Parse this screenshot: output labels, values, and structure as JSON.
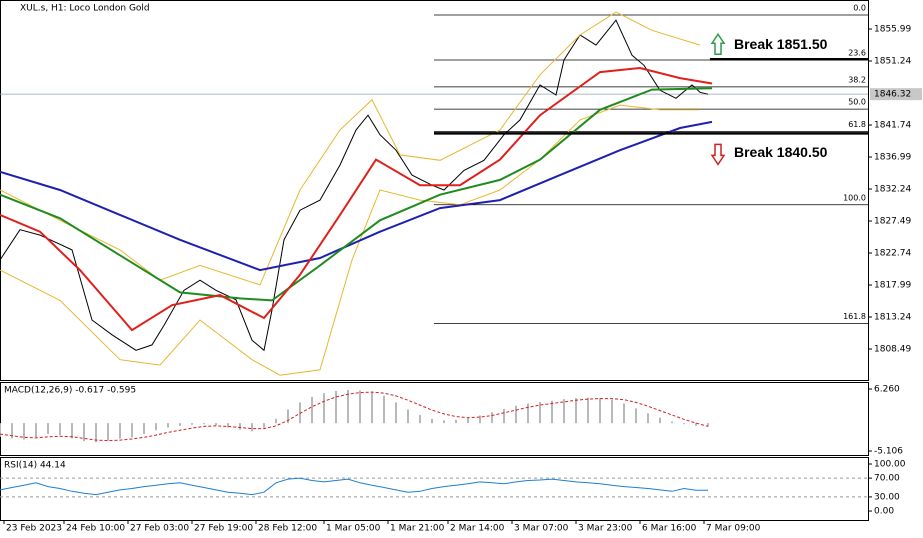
{
  "chart_data": [
    {
      "type": "line",
      "title": "XUL.s, H1:  Loco London Gold",
      "xlim": [
        0,
        217
      ],
      "ylim": [
        1803.89,
        1859.11
      ],
      "yticks": [
        1855.99,
        1851.24,
        1841.74,
        1836.99,
        1832.24,
        1827.49,
        1822.74,
        1817.99,
        1813.24,
        1808.49
      ],
      "xticks": [
        {
          "value": 1,
          "label": "23 Feb 2023"
        },
        {
          "value": 16,
          "label": "24 Feb 10:00"
        },
        {
          "value": 32,
          "label": "27 Feb 03:00"
        },
        {
          "value": 48,
          "label": "27 Feb 19:00"
        },
        {
          "value": 64,
          "label": "28 Feb 12:00"
        },
        {
          "value": 81,
          "label": "1 Mar 05:00"
        },
        {
          "value": 97,
          "label": "1 Mar 21:00"
        },
        {
          "value": 112,
          "label": "2 Mar 14:00"
        },
        {
          "value": 128,
          "label": "3 Mar 07:00"
        },
        {
          "value": 144,
          "label": "3 Mar 23:00"
        },
        {
          "value": 160,
          "label": "6 Mar 16:00"
        },
        {
          "value": 176,
          "label": "7 Mar 09:00"
        }
      ],
      "current_price": 1846.32,
      "series": [
        {
          "color": "#000000",
          "x": [
            0,
            5,
            10,
            18,
            23,
            28,
            34,
            38,
            41,
            46,
            50,
            54,
            59,
            63,
            66,
            68,
            71,
            75,
            80,
            85,
            89,
            92,
            95,
            99,
            103,
            108,
            111,
            116,
            121,
            126,
            130,
            135,
            139,
            141,
            145,
            149,
            154,
            158,
            161,
            165,
            169,
            173,
            175,
            177
          ],
          "values": [
            1821.7,
            1826.2,
            1825.4,
            1823.2,
            1812.8,
            1810.6,
            1808.3,
            1809.1,
            1812.0,
            1817.2,
            1818.7,
            1817.2,
            1815.8,
            1809.8,
            1808.3,
            1814.3,
            1824.7,
            1829.1,
            1830.6,
            1835.8,
            1841.0,
            1843.2,
            1840.3,
            1838.0,
            1834.3,
            1832.8,
            1832.1,
            1835.0,
            1836.5,
            1840.3,
            1842.5,
            1847.7,
            1846.2,
            1851.4,
            1855.1,
            1853.6,
            1857.3,
            1852.1,
            1850.6,
            1846.9,
            1845.7,
            1847.7,
            1846.6,
            1846.32
          ]
        },
        {
          "color": "#e8b630",
          "x": [
            0,
            15,
            30,
            40,
            50,
            65,
            75,
            85,
            93,
            100,
            110,
            125,
            135,
            145,
            154,
            163,
            175
          ],
          "values": [
            1832.1,
            1827.6,
            1823.2,
            1818.7,
            1820.9,
            1818.0,
            1832.1,
            1841.0,
            1845.5,
            1837.3,
            1836.5,
            1841.0,
            1849.2,
            1855.1,
            1858.5,
            1855.8,
            1853.6
          ]
        },
        {
          "color": "#e8b630",
          "x": [
            0,
            15,
            30,
            40,
            50,
            63,
            70,
            80,
            88,
            95,
            105,
            115,
            125,
            135,
            145,
            155,
            165,
            175
          ],
          "values": [
            1820.2,
            1815.7,
            1806.9,
            1806.1,
            1812.8,
            1806.9,
            1804.6,
            1805.4,
            1821.7,
            1832.1,
            1830.6,
            1829.9,
            1832.1,
            1836.6,
            1842.5,
            1844.7,
            1844.0,
            1844.0
          ]
        },
        {
          "color": "#1f1fb0",
          "x": [
            0,
            15,
            30,
            45,
            65,
            80,
            95,
            110,
            125,
            140,
            155,
            170,
            178
          ],
          "values": [
            1834.8,
            1832.1,
            1828.4,
            1824.7,
            1820.2,
            1822.0,
            1825.9,
            1829.4,
            1830.6,
            1834.3,
            1838.0,
            1841.3,
            1842.2
          ]
        },
        {
          "color": "#1e8c1e",
          "x": [
            0,
            15,
            30,
            45,
            60,
            68,
            80,
            95,
            110,
            125,
            135,
            150,
            163,
            178
          ],
          "values": [
            1831.4,
            1827.9,
            1822.4,
            1816.9,
            1816.0,
            1815.7,
            1820.9,
            1827.6,
            1831.4,
            1833.6,
            1836.6,
            1844.0,
            1847.0,
            1847.2
          ]
        },
        {
          "color": "#e0201c",
          "x": [
            0,
            10,
            20,
            33,
            43,
            55,
            66,
            75,
            85,
            94,
            105,
            115,
            125,
            135,
            150,
            160,
            170,
            178
          ],
          "values": [
            1828.4,
            1825.9,
            1820.2,
            1811.3,
            1815.0,
            1816.5,
            1813.1,
            1819.5,
            1828.4,
            1836.6,
            1832.8,
            1832.8,
            1836.6,
            1843.2,
            1849.6,
            1850.2,
            1848.7,
            1847.9
          ]
        }
      ],
      "fib_levels": [
        {
          "level": "0.0",
          "price": 1858.07
        },
        {
          "level": "23.6",
          "price": 1851.39
        },
        {
          "level": "38.2",
          "price": 1847.4
        },
        {
          "level": "50.0",
          "price": 1844.1
        },
        {
          "level": "61.8",
          "price": 1840.8
        },
        {
          "level": "100.0",
          "price": 1829.9
        },
        {
          "level": "161.8",
          "price": 1812.3
        }
      ],
      "annotations": [
        {
          "text": "Break 1851.50",
          "price": 1851.5,
          "color": "#2e9c48"
        },
        {
          "text": "Break 1840.50",
          "price": 1840.5,
          "color": "#d02020"
        }
      ]
    },
    {
      "type": "macd",
      "title": "MACD(12,26,9) -0.617 -0.595",
      "xlim": [
        0,
        217
      ],
      "ylim": [
        -5.84,
        7.36
      ],
      "yticks": [
        {
          "value": 6.26,
          "label": "6.260"
        },
        -5.106
      ],
      "x": [
        0,
        3,
        6,
        9,
        12,
        15,
        18,
        21,
        24,
        27,
        30,
        33,
        36,
        39,
        42,
        45,
        48,
        51,
        54,
        57,
        60,
        63,
        66,
        69,
        72,
        75,
        78,
        81,
        84,
        87,
        90,
        93,
        96,
        99,
        102,
        105,
        108,
        111,
        114,
        117,
        120,
        123,
        126,
        129,
        132,
        135,
        138,
        141,
        144,
        147,
        150,
        153,
        156,
        159,
        162,
        165,
        168,
        171,
        174,
        177
      ],
      "series": [
        {
          "color": "#b8b8b8",
          "values": [
            -2.5,
            -2.8,
            -3.0,
            -2.6,
            -2.0,
            -2.2,
            -2.8,
            -3.3,
            -3.5,
            -3.2,
            -2.8,
            -2.6,
            -2.0,
            -1.3,
            -0.8,
            -0.5,
            -0.3,
            -0.2,
            -0.4,
            -0.8,
            -1.2,
            -1.5,
            -0.8,
            0.8,
            2.5,
            3.8,
            4.8,
            5.5,
            5.9,
            6.1,
            6.0,
            5.8,
            5.0,
            3.8,
            2.5,
            1.5,
            0.8,
            0.5,
            0.6,
            0.9,
            1.4,
            2.0,
            2.6,
            3.2,
            3.6,
            3.9,
            4.1,
            4.4,
            4.6,
            4.7,
            4.6,
            4.3,
            3.6,
            2.7,
            1.8,
            1.0,
            0.3,
            -0.2,
            -0.5,
            -0.617
          ]
        },
        {
          "color": "#d02020",
          "values": [
            -2.0,
            -2.3,
            -2.6,
            -2.7,
            -2.5,
            -2.4,
            -2.5,
            -2.8,
            -3.1,
            -3.2,
            -3.1,
            -2.9,
            -2.6,
            -2.2,
            -1.7,
            -1.3,
            -0.9,
            -0.6,
            -0.5,
            -0.6,
            -0.8,
            -1.0,
            -1.0,
            -0.5,
            0.5,
            1.8,
            3.0,
            4.0,
            4.8,
            5.3,
            5.6,
            5.7,
            5.5,
            5.0,
            4.2,
            3.3,
            2.4,
            1.7,
            1.2,
            1.0,
            1.1,
            1.4,
            1.9,
            2.4,
            2.9,
            3.3,
            3.6,
            3.9,
            4.2,
            4.4,
            4.5,
            4.5,
            4.3,
            3.8,
            3.1,
            2.3,
            1.5,
            0.7,
            0.0,
            -0.595
          ]
        }
      ]
    },
    {
      "type": "line",
      "title": "RSI(14) 44.14",
      "xlim": [
        0,
        217
      ],
      "ylim": [
        -19.1,
        112.8
      ],
      "yticks": [
        {
          "value": 100,
          "label": "100.00"
        },
        {
          "value": 70,
          "label": "70.00"
        },
        {
          "value": 30,
          "label": "30.00"
        },
        {
          "value": 0,
          "label": "0.00"
        }
      ],
      "levels": [
        70,
        30
      ],
      "series": [
        {
          "color": "#1e7fd0",
          "x": [
            0,
            3,
            6,
            9,
            12,
            15,
            18,
            21,
            24,
            27,
            30,
            33,
            36,
            39,
            42,
            45,
            48,
            51,
            54,
            57,
            60,
            63,
            66,
            69,
            72,
            75,
            78,
            81,
            84,
            87,
            90,
            93,
            96,
            99,
            102,
            105,
            108,
            111,
            114,
            117,
            120,
            123,
            126,
            129,
            132,
            135,
            138,
            141,
            144,
            147,
            150,
            153,
            156,
            159,
            162,
            165,
            168,
            171,
            174,
            177
          ],
          "values": [
            45,
            50,
            55,
            60,
            52,
            48,
            42,
            38,
            35,
            40,
            45,
            48,
            52,
            55,
            58,
            60,
            55,
            50,
            45,
            40,
            38,
            35,
            40,
            60,
            68,
            70,
            65,
            62,
            65,
            68,
            60,
            55,
            50,
            45,
            40,
            42,
            48,
            52,
            55,
            58,
            62,
            60,
            58,
            62,
            65,
            66,
            68,
            65,
            62,
            60,
            58,
            55,
            52,
            50,
            48,
            45,
            42,
            48,
            44,
            44.14
          ]
        }
      ]
    }
  ]
}
